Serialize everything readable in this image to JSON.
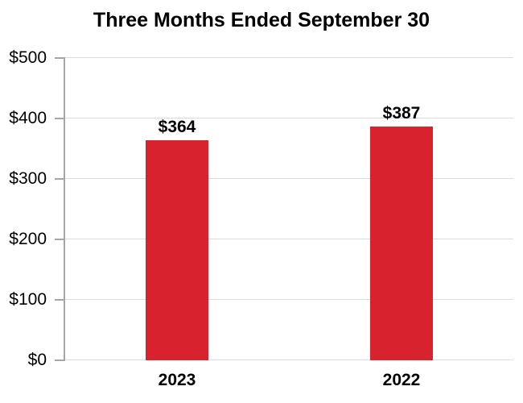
{
  "page": {
    "background_color": "#FFFFFF"
  },
  "chart_data": {
    "type": "bar",
    "title": "Three Months Ended September 30",
    "categories": [
      "2023",
      "2022"
    ],
    "values": [
      364,
      387
    ],
    "value_labels": [
      "$364",
      "$387"
    ],
    "xlabel": "",
    "ylabel": "",
    "ylim": [
      0,
      500
    ],
    "y_tick_step": 100,
    "y_tick_labels": [
      "$0",
      "$100",
      "$200",
      "$300",
      "$400",
      "$500"
    ],
    "grid": true,
    "legend": false,
    "colors": {
      "bar": "#D8232E",
      "grid": "#DBDBDB",
      "axis": "#A6A6A6",
      "text": "#000000"
    }
  }
}
